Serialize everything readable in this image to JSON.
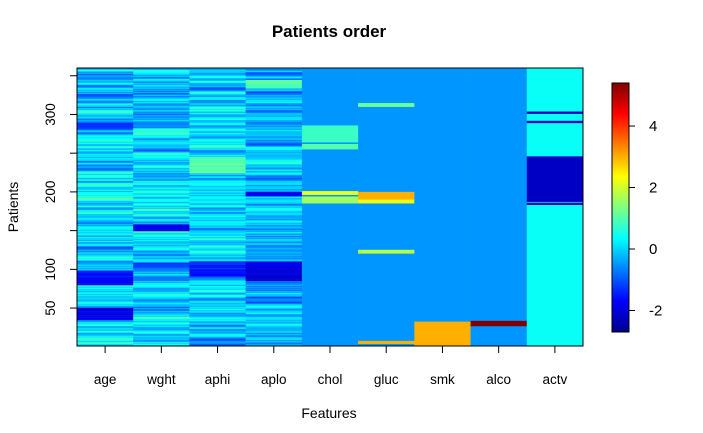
{
  "chart_data": {
    "type": "heatmap",
    "title": "Patients order",
    "xlabel": "Features",
    "ylabel": "Patients",
    "features": [
      "age",
      "wght",
      "aphi",
      "aplo",
      "chol",
      "gluc",
      "smk",
      "alco",
      "actv"
    ],
    "y_ticks": [
      "50",
      "100",
      "200",
      "300"
    ],
    "ylim": [
      1,
      360
    ],
    "colorbar": {
      "range": [
        -2.7,
        5.4
      ],
      "ticks": [
        "-2",
        "0",
        "2",
        "4"
      ],
      "colormap": [
        "#00008B",
        "#0000FF",
        "#0080FF",
        "#00FFFF",
        "#80FF80",
        "#FFFF00",
        "#FF8000",
        "#FF0000",
        "#800000"
      ]
    },
    "approximate_columns": {
      "chol": {
        "base": -0.5,
        "bands": [
          [
            186,
            194,
            1.6
          ],
          [
            197,
            201,
            2.2
          ],
          [
            256,
            262,
            1.0
          ],
          [
            265,
            286,
            0.8
          ]
        ]
      },
      "gluc": {
        "base": -0.5,
        "bands": [
          [
            4,
            7,
            3.0
          ],
          [
            121,
            125,
            1.8
          ],
          [
            186,
            190,
            2.2
          ],
          [
            191,
            200,
            3.0
          ],
          [
            311,
            315,
            1.2
          ]
        ]
      },
      "smk": {
        "base": -0.5,
        "bands": [
          [
            1,
            32,
            3.0
          ]
        ]
      },
      "alco": {
        "base": -0.5,
        "bands": [
          [
            27,
            33,
            5.4
          ]
        ]
      },
      "actv": {
        "base": 0.4,
        "bands": [
          [
            184,
            186,
            -2.2
          ],
          [
            188,
            246,
            -2.2
          ],
          [
            290,
            292,
            -2.2
          ],
          [
            302,
            304,
            -2.2
          ]
        ]
      }
    }
  }
}
